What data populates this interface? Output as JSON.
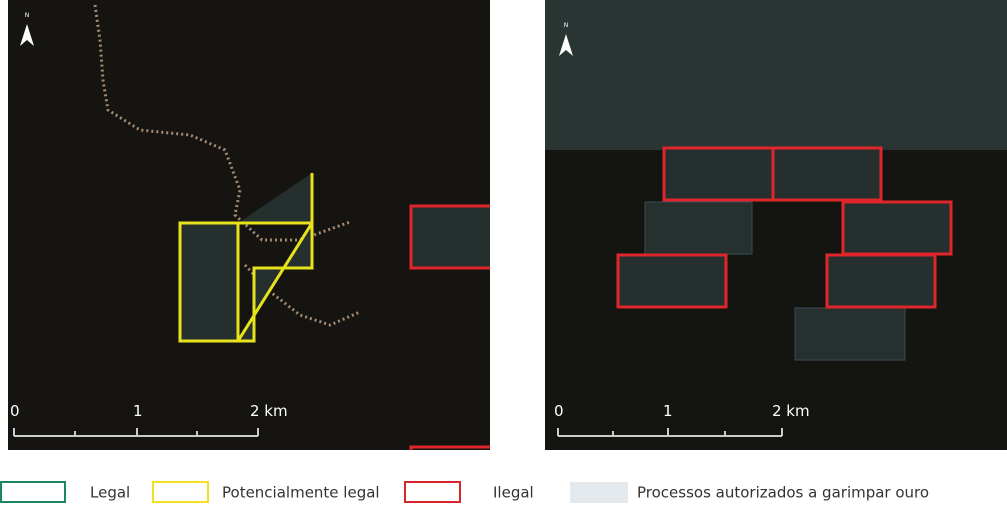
{
  "maps": [
    {
      "north": "N",
      "scale": [
        "0",
        "1",
        "2 km"
      ]
    },
    {
      "north": "N",
      "scale": [
        "0",
        "1",
        "2 km"
      ]
    }
  ],
  "legend": [
    "Legal",
    "Potencialmente legal",
    "Ilegal",
    "Processos autorizados a garimpar ouro"
  ]
}
